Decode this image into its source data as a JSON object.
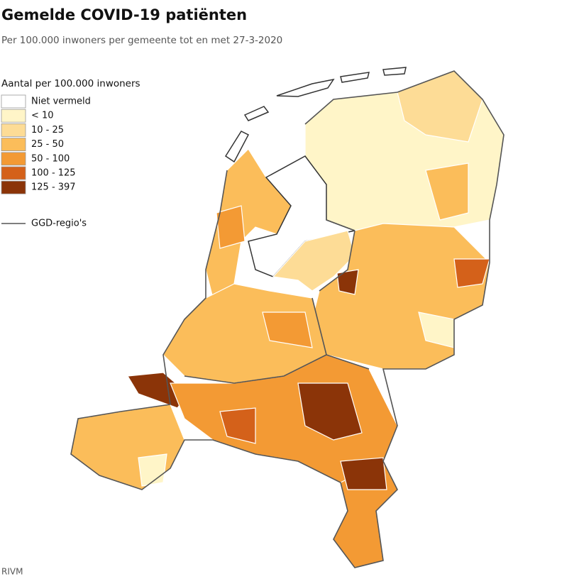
{
  "header": {
    "title": "Gemelde COVID-19 patiënten",
    "subtitle": "Per 100.000 inwoners per gemeente tot en met 27-3-2020"
  },
  "legend": {
    "title": "Aantal per 100.000 inwoners",
    "items": [
      {
        "label": "Niet vermeld",
        "color": "#ffffff"
      },
      {
        "label": "< 10",
        "color": "#fff5c8"
      },
      {
        "label": "10 - 25",
        "color": "#fddc96"
      },
      {
        "label": "25 - 50",
        "color": "#fbbd5a"
      },
      {
        "label": "50 - 100",
        "color": "#f39a34"
      },
      {
        "label": "100 - 125",
        "color": "#d4611a"
      },
      {
        "label": "125 - 397",
        "color": "#8b3408"
      }
    ],
    "line_label": "GGD-regio's"
  },
  "footer": {
    "source": "RIVM"
  }
}
